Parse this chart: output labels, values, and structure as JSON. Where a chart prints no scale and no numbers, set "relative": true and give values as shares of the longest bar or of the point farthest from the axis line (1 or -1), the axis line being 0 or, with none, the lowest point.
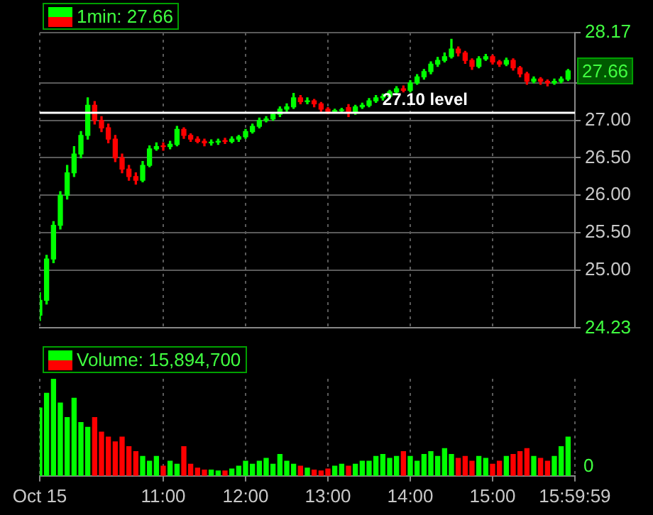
{
  "chart_data": [
    {
      "type": "candlestick",
      "tick_labels": "y",
      "grid": true,
      "legend": "top left",
      "x": [
        9.5,
        9.583,
        9.667,
        9.75,
        9.833,
        9.917,
        10,
        10.083,
        10.167,
        10.25,
        10.333,
        10.417,
        10.5,
        10.583,
        10.667,
        10.75,
        10.833,
        10.917,
        11,
        11.083,
        11.167,
        11.25,
        11.333,
        11.417,
        11.5,
        11.583,
        11.667,
        11.75,
        11.833,
        11.917,
        12,
        12.083,
        12.167,
        12.25,
        12.333,
        12.417,
        12.5,
        12.583,
        12.667,
        12.75,
        12.833,
        12.917,
        13,
        13.083,
        13.167,
        13.25,
        13.333,
        13.417,
        13.5,
        13.583,
        13.667,
        13.75,
        13.833,
        13.917,
        14,
        14.083,
        14.167,
        14.25,
        14.333,
        14.417,
        14.5,
        14.583,
        14.667,
        14.75,
        14.833,
        14.917,
        15,
        15.083,
        15.167,
        15.25,
        15.333,
        15.417,
        15.5,
        15.583,
        15.667,
        15.75,
        15.833,
        15.917
      ],
      "series": [
        {
          "name": "1min: 27.66",
          "ohlc": [
            [
              24.4,
              24.7,
              24.33,
              24.6
            ],
            [
              24.6,
              25.2,
              24.55,
              25.15
            ],
            [
              25.15,
              25.65,
              25.1,
              25.6
            ],
            [
              25.6,
              26.05,
              25.55,
              26.0
            ],
            [
              26.0,
              26.4,
              25.95,
              26.3
            ],
            [
              26.3,
              26.65,
              26.25,
              26.55
            ],
            [
              26.55,
              26.85,
              26.5,
              26.8
            ],
            [
              26.8,
              27.3,
              26.75,
              27.2
            ],
            [
              27.2,
              27.25,
              26.95,
              27.0
            ],
            [
              27.0,
              27.05,
              26.85,
              26.9
            ],
            [
              26.9,
              26.95,
              26.7,
              26.75
            ],
            [
              26.75,
              26.8,
              26.45,
              26.5
            ],
            [
              26.5,
              26.55,
              26.3,
              26.35
            ],
            [
              26.35,
              26.4,
              26.2,
              26.25
            ],
            [
              26.25,
              26.3,
              26.15,
              26.2
            ],
            [
              26.2,
              26.45,
              26.18,
              26.4
            ],
            [
              26.4,
              26.66,
              26.38,
              26.62
            ],
            [
              26.62,
              26.7,
              26.6,
              26.65
            ],
            [
              26.66,
              26.7,
              26.6,
              26.65
            ],
            [
              26.65,
              26.72,
              26.62,
              26.68
            ],
            [
              26.68,
              26.92,
              26.66,
              26.88
            ],
            [
              26.88,
              26.9,
              26.76,
              26.8
            ],
            [
              26.8,
              26.82,
              26.72,
              26.75
            ],
            [
              26.75,
              26.78,
              26.7,
              26.72
            ],
            [
              26.72,
              26.75,
              26.66,
              26.7
            ],
            [
              26.7,
              26.74,
              26.67,
              26.71
            ],
            [
              26.71,
              26.75,
              26.68,
              26.72
            ],
            [
              26.73,
              26.76,
              26.69,
              26.72
            ],
            [
              26.72,
              26.78,
              26.7,
              26.75
            ],
            [
              26.75,
              26.8,
              26.72,
              26.78
            ],
            [
              26.78,
              26.88,
              26.76,
              26.85
            ],
            [
              26.85,
              26.95,
              26.83,
              26.92
            ],
            [
              26.92,
              27.03,
              26.9,
              27.0
            ],
            [
              27.0,
              27.05,
              26.98,
              27.02
            ],
            [
              27.02,
              27.1,
              27.0,
              27.08
            ],
            [
              27.08,
              27.18,
              27.05,
              27.15
            ],
            [
              27.15,
              27.22,
              27.12,
              27.18
            ],
            [
              27.18,
              27.36,
              27.16,
              27.3
            ],
            [
              27.3,
              27.33,
              27.22,
              27.25
            ],
            [
              27.25,
              27.3,
              27.22,
              27.26
            ],
            [
              27.26,
              27.28,
              27.18,
              27.22
            ],
            [
              27.22,
              27.24,
              27.12,
              27.15
            ],
            [
              27.15,
              27.17,
              27.09,
              27.12
            ],
            [
              27.12,
              27.15,
              27.1,
              27.13
            ],
            [
              27.13,
              27.16,
              27.11,
              27.14
            ],
            [
              27.17,
              27.21,
              27.05,
              27.1
            ],
            [
              27.1,
              27.2,
              27.08,
              27.18
            ],
            [
              27.18,
              27.23,
              27.16,
              27.2
            ],
            [
              27.2,
              27.29,
              27.18,
              27.26
            ],
            [
              27.26,
              27.33,
              27.24,
              27.3
            ],
            [
              27.3,
              27.35,
              27.27,
              27.32
            ],
            [
              27.32,
              27.4,
              27.3,
              27.38
            ],
            [
              27.38,
              27.45,
              27.35,
              27.42
            ],
            [
              27.42,
              27.46,
              27.38,
              27.4
            ],
            [
              27.4,
              27.53,
              27.38,
              27.5
            ],
            [
              27.5,
              27.61,
              27.48,
              27.58
            ],
            [
              27.58,
              27.68,
              27.55,
              27.65
            ],
            [
              27.65,
              27.78,
              27.62,
              27.75
            ],
            [
              27.75,
              27.84,
              27.72,
              27.8
            ],
            [
              27.8,
              27.9,
              27.78,
              27.85
            ],
            [
              27.85,
              28.08,
              27.83,
              27.95
            ],
            [
              27.95,
              27.98,
              27.86,
              27.9
            ],
            [
              27.9,
              27.92,
              27.76,
              27.8
            ],
            [
              27.8,
              27.82,
              27.68,
              27.72
            ],
            [
              27.72,
              27.85,
              27.7,
              27.82
            ],
            [
              27.82,
              27.88,
              27.8,
              27.85
            ],
            [
              27.85,
              27.87,
              27.75,
              27.78
            ],
            [
              27.78,
              27.8,
              27.72,
              27.75
            ],
            [
              27.75,
              27.83,
              27.73,
              27.8
            ],
            [
              27.8,
              27.82,
              27.67,
              27.7
            ],
            [
              27.7,
              27.72,
              27.58,
              27.62
            ],
            [
              27.62,
              27.64,
              27.48,
              27.52
            ],
            [
              27.52,
              27.58,
              27.5,
              27.55
            ],
            [
              27.55,
              27.57,
              27.48,
              27.52
            ],
            [
              27.52,
              27.54,
              27.46,
              27.5
            ],
            [
              27.5,
              27.55,
              27.48,
              27.52
            ],
            [
              27.52,
              27.58,
              27.5,
              27.55
            ],
            [
              27.55,
              27.68,
              27.53,
              27.66
            ]
          ],
          "colors": [
            "#00ff00",
            "#00ff00",
            "#00ff00",
            "#00ff00",
            "#00ff00",
            "#00ff00",
            "#00ff00",
            "#00ff00",
            "#ff0000",
            "#ff0000",
            "#ff0000",
            "#ff0000",
            "#ff0000",
            "#ff0000",
            "#ff0000",
            "#00ff00",
            "#00ff00",
            "#00ff00",
            "#ff0000",
            "#00ff00",
            "#00ff00",
            "#ff0000",
            "#ff0000",
            "#ff0000",
            "#ff0000",
            "#00ff00",
            "#00ff00",
            "#ff0000",
            "#00ff00",
            "#00ff00",
            "#00ff00",
            "#00ff00",
            "#00ff00",
            "#00ff00",
            "#00ff00",
            "#00ff00",
            "#00ff00",
            "#00ff00",
            "#ff0000",
            "#00ff00",
            "#ff0000",
            "#ff0000",
            "#ff0000",
            "#00ff00",
            "#00ff00",
            "#ff0000",
            "#00ff00",
            "#00ff00",
            "#00ff00",
            "#00ff00",
            "#00ff00",
            "#00ff00",
            "#00ff00",
            "#ff0000",
            "#00ff00",
            "#00ff00",
            "#00ff00",
            "#00ff00",
            "#00ff00",
            "#00ff00",
            "#00ff00",
            "#ff0000",
            "#ff0000",
            "#ff0000",
            "#00ff00",
            "#00ff00",
            "#ff0000",
            "#ff0000",
            "#00ff00",
            "#ff0000",
            "#ff0000",
            "#ff0000",
            "#00ff00",
            "#ff0000",
            "#ff0000",
            "#00ff00",
            "#00ff00",
            "#00ff00"
          ]
        }
      ],
      "xlim": [
        9.5,
        16
      ],
      "xticks": [
        {
          "value": 9.5,
          "label": null
        },
        {
          "value": 11,
          "label": null
        },
        {
          "value": 12,
          "label": null
        },
        {
          "value": 13,
          "label": null
        },
        {
          "value": 14,
          "label": null
        },
        {
          "value": 15,
          "label": null
        },
        {
          "value": 15.9997,
          "label": null
        }
      ],
      "ylim": [
        24.23,
        28.17
      ],
      "yticks": [
        {
          "value": 24.23,
          "label": "24.23"
        },
        {
          "value": 25,
          "label": "25.00"
        },
        {
          "value": 25.5,
          "label": "25.50"
        },
        {
          "value": 26,
          "label": "26.00"
        },
        {
          "value": 26.5,
          "label": "26.50"
        },
        {
          "value": 27,
          "label": "27.00"
        },
        {
          "value": 27.5,
          "label": null
        },
        {
          "value": 28.17,
          "label": "28.17"
        }
      ],
      "ref_lines": [
        {
          "axis": "y",
          "value": 27.1,
          "label": "27.10 level",
          "color": "#ffffff"
        }
      ],
      "annotations": [
        {
          "text": "27.66",
          "y": 27.66
        }
      ]
    },
    {
      "type": "bar",
      "relative": true,
      "grid": true,
      "legend": "top left",
      "x": [
        9.5,
        9.583,
        9.667,
        9.75,
        9.833,
        9.917,
        10,
        10.083,
        10.167,
        10.25,
        10.333,
        10.417,
        10.5,
        10.583,
        10.667,
        10.75,
        10.833,
        10.917,
        11,
        11.083,
        11.167,
        11.25,
        11.333,
        11.417,
        11.5,
        11.583,
        11.667,
        11.75,
        11.833,
        11.917,
        12,
        12.083,
        12.167,
        12.25,
        12.333,
        12.417,
        12.5,
        12.583,
        12.667,
        12.75,
        12.833,
        12.917,
        13,
        13.083,
        13.167,
        13.25,
        13.333,
        13.417,
        13.5,
        13.583,
        13.667,
        13.75,
        13.833,
        13.917,
        14,
        14.083,
        14.167,
        14.25,
        14.333,
        14.417,
        14.5,
        14.583,
        14.667,
        14.75,
        14.833,
        14.917,
        15,
        15.083,
        15.167,
        15.25,
        15.333,
        15.417,
        15.5,
        15.583,
        15.667,
        15.75,
        15.833,
        15.917
      ],
      "series": [
        {
          "name": "Volume: 15,894,700",
          "values": [
            0.7,
            0.85,
            1.0,
            0.75,
            0.6,
            0.8,
            0.55,
            0.5,
            0.6,
            0.45,
            0.4,
            0.35,
            0.4,
            0.3,
            0.25,
            0.2,
            0.15,
            0.2,
            0.1,
            0.15,
            0.12,
            0.3,
            0.12,
            0.08,
            0.06,
            0.06,
            0.05,
            0.05,
            0.07,
            0.1,
            0.15,
            0.12,
            0.15,
            0.18,
            0.12,
            0.22,
            0.15,
            0.12,
            0.1,
            0.08,
            0.06,
            0.05,
            0.07,
            0.1,
            0.12,
            0.1,
            0.12,
            0.15,
            0.15,
            0.2,
            0.22,
            0.18,
            0.2,
            0.25,
            0.2,
            0.15,
            0.22,
            0.25,
            0.2,
            0.28,
            0.22,
            0.18,
            0.2,
            0.15,
            0.2,
            0.18,
            0.12,
            0.15,
            0.2,
            0.22,
            0.25,
            0.28,
            0.2,
            0.18,
            0.15,
            0.2,
            0.3,
            0.4
          ],
          "colors": [
            "#00ff00",
            "#00ff00",
            "#00ff00",
            "#00ff00",
            "#00ff00",
            "#00ff00",
            "#00ff00",
            "#00ff00",
            "#ff0000",
            "#ff0000",
            "#ff0000",
            "#ff0000",
            "#ff0000",
            "#ff0000",
            "#ff0000",
            "#00ff00",
            "#00ff00",
            "#00ff00",
            "#ff0000",
            "#00ff00",
            "#00ff00",
            "#ff0000",
            "#ff0000",
            "#ff0000",
            "#ff0000",
            "#00ff00",
            "#00ff00",
            "#ff0000",
            "#00ff00",
            "#00ff00",
            "#00ff00",
            "#00ff00",
            "#00ff00",
            "#00ff00",
            "#00ff00",
            "#00ff00",
            "#00ff00",
            "#00ff00",
            "#ff0000",
            "#00ff00",
            "#ff0000",
            "#ff0000",
            "#ff0000",
            "#00ff00",
            "#00ff00",
            "#ff0000",
            "#00ff00",
            "#00ff00",
            "#00ff00",
            "#00ff00",
            "#00ff00",
            "#00ff00",
            "#00ff00",
            "#ff0000",
            "#00ff00",
            "#00ff00",
            "#00ff00",
            "#00ff00",
            "#00ff00",
            "#00ff00",
            "#00ff00",
            "#ff0000",
            "#ff0000",
            "#ff0000",
            "#00ff00",
            "#00ff00",
            "#ff0000",
            "#ff0000",
            "#00ff00",
            "#ff0000",
            "#ff0000",
            "#ff0000",
            "#00ff00",
            "#ff0000",
            "#ff0000",
            "#00ff00",
            "#00ff00",
            "#00ff00"
          ]
        }
      ],
      "xlim": [
        9.5,
        16
      ],
      "xticks": [
        {
          "value": 9.5,
          "label": "Oct 15"
        },
        {
          "value": 11,
          "label": "11:00"
        },
        {
          "value": 12,
          "label": "12:00"
        },
        {
          "value": 13,
          "label": "13:00"
        },
        {
          "value": 14,
          "label": "14:00"
        },
        {
          "value": 15,
          "label": "15:00"
        },
        {
          "value": 15.9997,
          "label": "15:59:59"
        }
      ],
      "annotations": [
        "0"
      ]
    }
  ]
}
